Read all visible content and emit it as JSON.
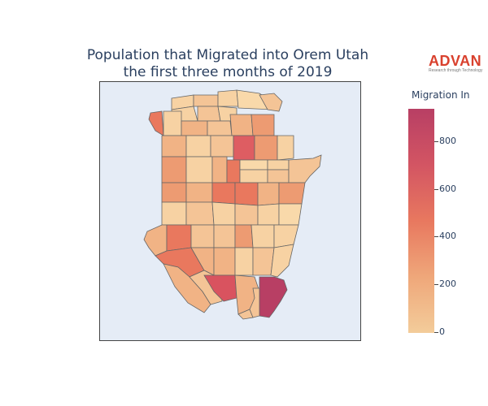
{
  "title_line1": "Population that Migrated into Orem Utah",
  "title_line2": "the first three months of 2019",
  "logo": {
    "name": "ADVAN",
    "tagline": "Research through Technology"
  },
  "colorbar": {
    "title": "Migration In",
    "range": [
      0,
      940
    ],
    "ticks": [
      "0",
      "200",
      "400",
      "600",
      "800"
    ],
    "colorscale": [
      "#f3cc9a",
      "#efa77a",
      "#e8785f",
      "#d35563",
      "#b83f64"
    ]
  },
  "map": {
    "region": "Orem, Utah",
    "border_color": "#555555",
    "background": "#e5ecf6"
  }
}
